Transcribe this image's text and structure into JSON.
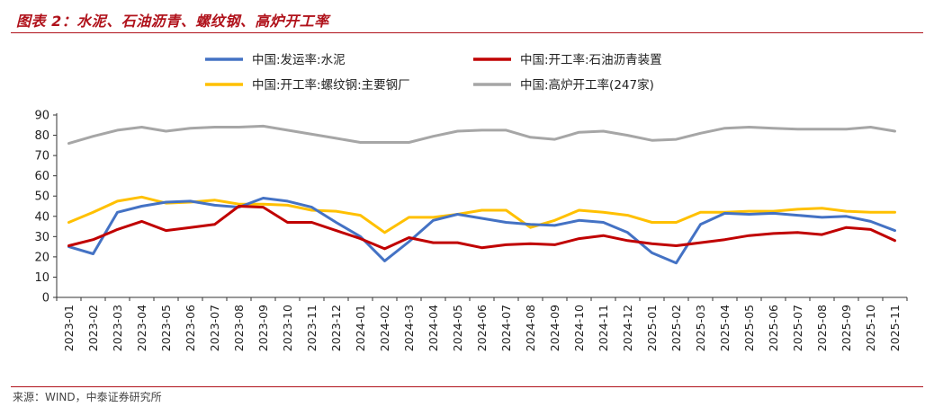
{
  "title": "图表 2：水泥、石油沥青、螺纹钢、高炉开工率",
  "source": "来源：WIND，中泰证券研究所",
  "chart_data": {
    "type": "line",
    "categories": [
      "2023-01",
      "2023-02",
      "2023-03",
      "2023-04",
      "2023-05",
      "2023-06",
      "2023-07",
      "2023-08",
      "2023-09",
      "2023-10",
      "2023-11",
      "2023-12",
      "2024-01",
      "2024-02",
      "2024-03",
      "2024-04",
      "2024-05",
      "2024-06",
      "2024-07",
      "2024-08",
      "2024-09",
      "2024-10",
      "2024-11",
      "2024-12",
      "2025-01",
      "2025-02",
      "2025-03",
      "2025-04",
      "2025-05",
      "2025-06",
      "2025-07",
      "2025-08",
      "2025-09",
      "2025-10",
      "2025-11"
    ],
    "yticks": [
      0,
      10,
      20,
      30,
      40,
      50,
      60,
      70,
      80,
      90
    ],
    "ylim": [
      0,
      90
    ],
    "legend_position": "top",
    "series": [
      {
        "name": "中国:发运率:水泥",
        "color": "#4472c4",
        "values": [
          25,
          21.5,
          42,
          45,
          47,
          47.5,
          45.5,
          44.5,
          49,
          47.5,
          44.5,
          37,
          30,
          18,
          27.5,
          38,
          41,
          39,
          37,
          36,
          35.5,
          38,
          37,
          32,
          22,
          17,
          36,
          41.5,
          41,
          41.5,
          40.5,
          39.5,
          40,
          37.5,
          33
        ]
      },
      {
        "name": "中国:开工率:石油沥青装置",
        "color": "#c00000",
        "values": [
          25.5,
          28.5,
          33.5,
          37.5,
          33,
          34.5,
          36,
          45,
          44.5,
          37,
          37,
          33,
          29,
          24,
          29.5,
          27,
          27,
          24.5,
          26,
          26.5,
          26,
          29,
          30.5,
          28,
          26.5,
          25.5,
          27,
          28.5,
          30.5,
          31.5,
          32,
          31,
          34.5,
          33.5,
          28
        ]
      },
      {
        "name": "中国:开工率:螺纹钢:主要钢厂",
        "color": "#ffc000",
        "values": [
          37,
          42,
          47.5,
          49.5,
          46.5,
          47,
          48,
          46,
          46,
          45.5,
          43,
          42.5,
          40.5,
          32,
          39.5,
          39.5,
          41,
          43,
          43,
          34.5,
          38,
          43,
          42,
          40.5,
          37,
          37,
          42,
          42,
          42.5,
          42.5,
          43.5,
          44,
          42.5,
          42,
          42
        ]
      },
      {
        "name": "中国:高炉开工率(247家)",
        "color": "#a6a6a6",
        "values": [
          76,
          79.5,
          82.5,
          84,
          82,
          83.5,
          84,
          84,
          84.5,
          82.5,
          80.5,
          78.5,
          76.5,
          76.5,
          76.5,
          79.5,
          82,
          82.5,
          82.5,
          79,
          78,
          81.5,
          82,
          80,
          77.5,
          78,
          81,
          83.5,
          84,
          83.5,
          83,
          83,
          83,
          84,
          82
        ]
      }
    ]
  }
}
